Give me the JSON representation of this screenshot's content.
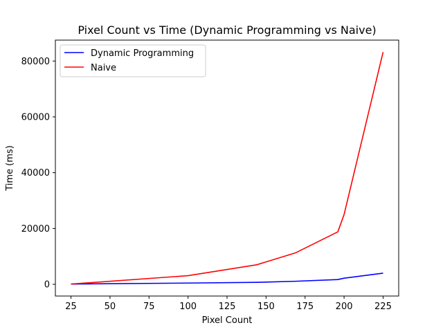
{
  "chart_data": {
    "type": "line",
    "title": "Pixel Count vs Time (Dynamic Programming vs Naive)",
    "xlabel": "Pixel Count",
    "ylabel": "Time (ms)",
    "xlim": [
      15,
      235
    ],
    "ylim": [
      -4200,
      87500
    ],
    "xticks": [
      25,
      50,
      75,
      100,
      125,
      150,
      175,
      200,
      225
    ],
    "xtick_labels": [
      "25",
      "50",
      "75",
      "100",
      "125",
      "150",
      "175",
      "200",
      "225"
    ],
    "yticks": [
      0,
      20000,
      40000,
      60000,
      80000
    ],
    "ytick_labels": [
      "0",
      "20000",
      "40000",
      "60000",
      "80000"
    ],
    "grid": false,
    "legend": "top-left",
    "series": [
      {
        "name": "Dynamic Programming",
        "color": "#0000ff",
        "x": [
          25,
          100,
          144,
          169,
          196,
          200,
          225
        ],
        "y": [
          100,
          450,
          700,
          1100,
          1700,
          2200,
          4000
        ]
      },
      {
        "name": "Naive",
        "color": "#ff0000",
        "x": [
          25,
          100,
          144,
          169,
          196,
          200,
          225
        ],
        "y": [
          100,
          3100,
          7000,
          11300,
          18800,
          25000,
          83200
        ]
      }
    ]
  }
}
